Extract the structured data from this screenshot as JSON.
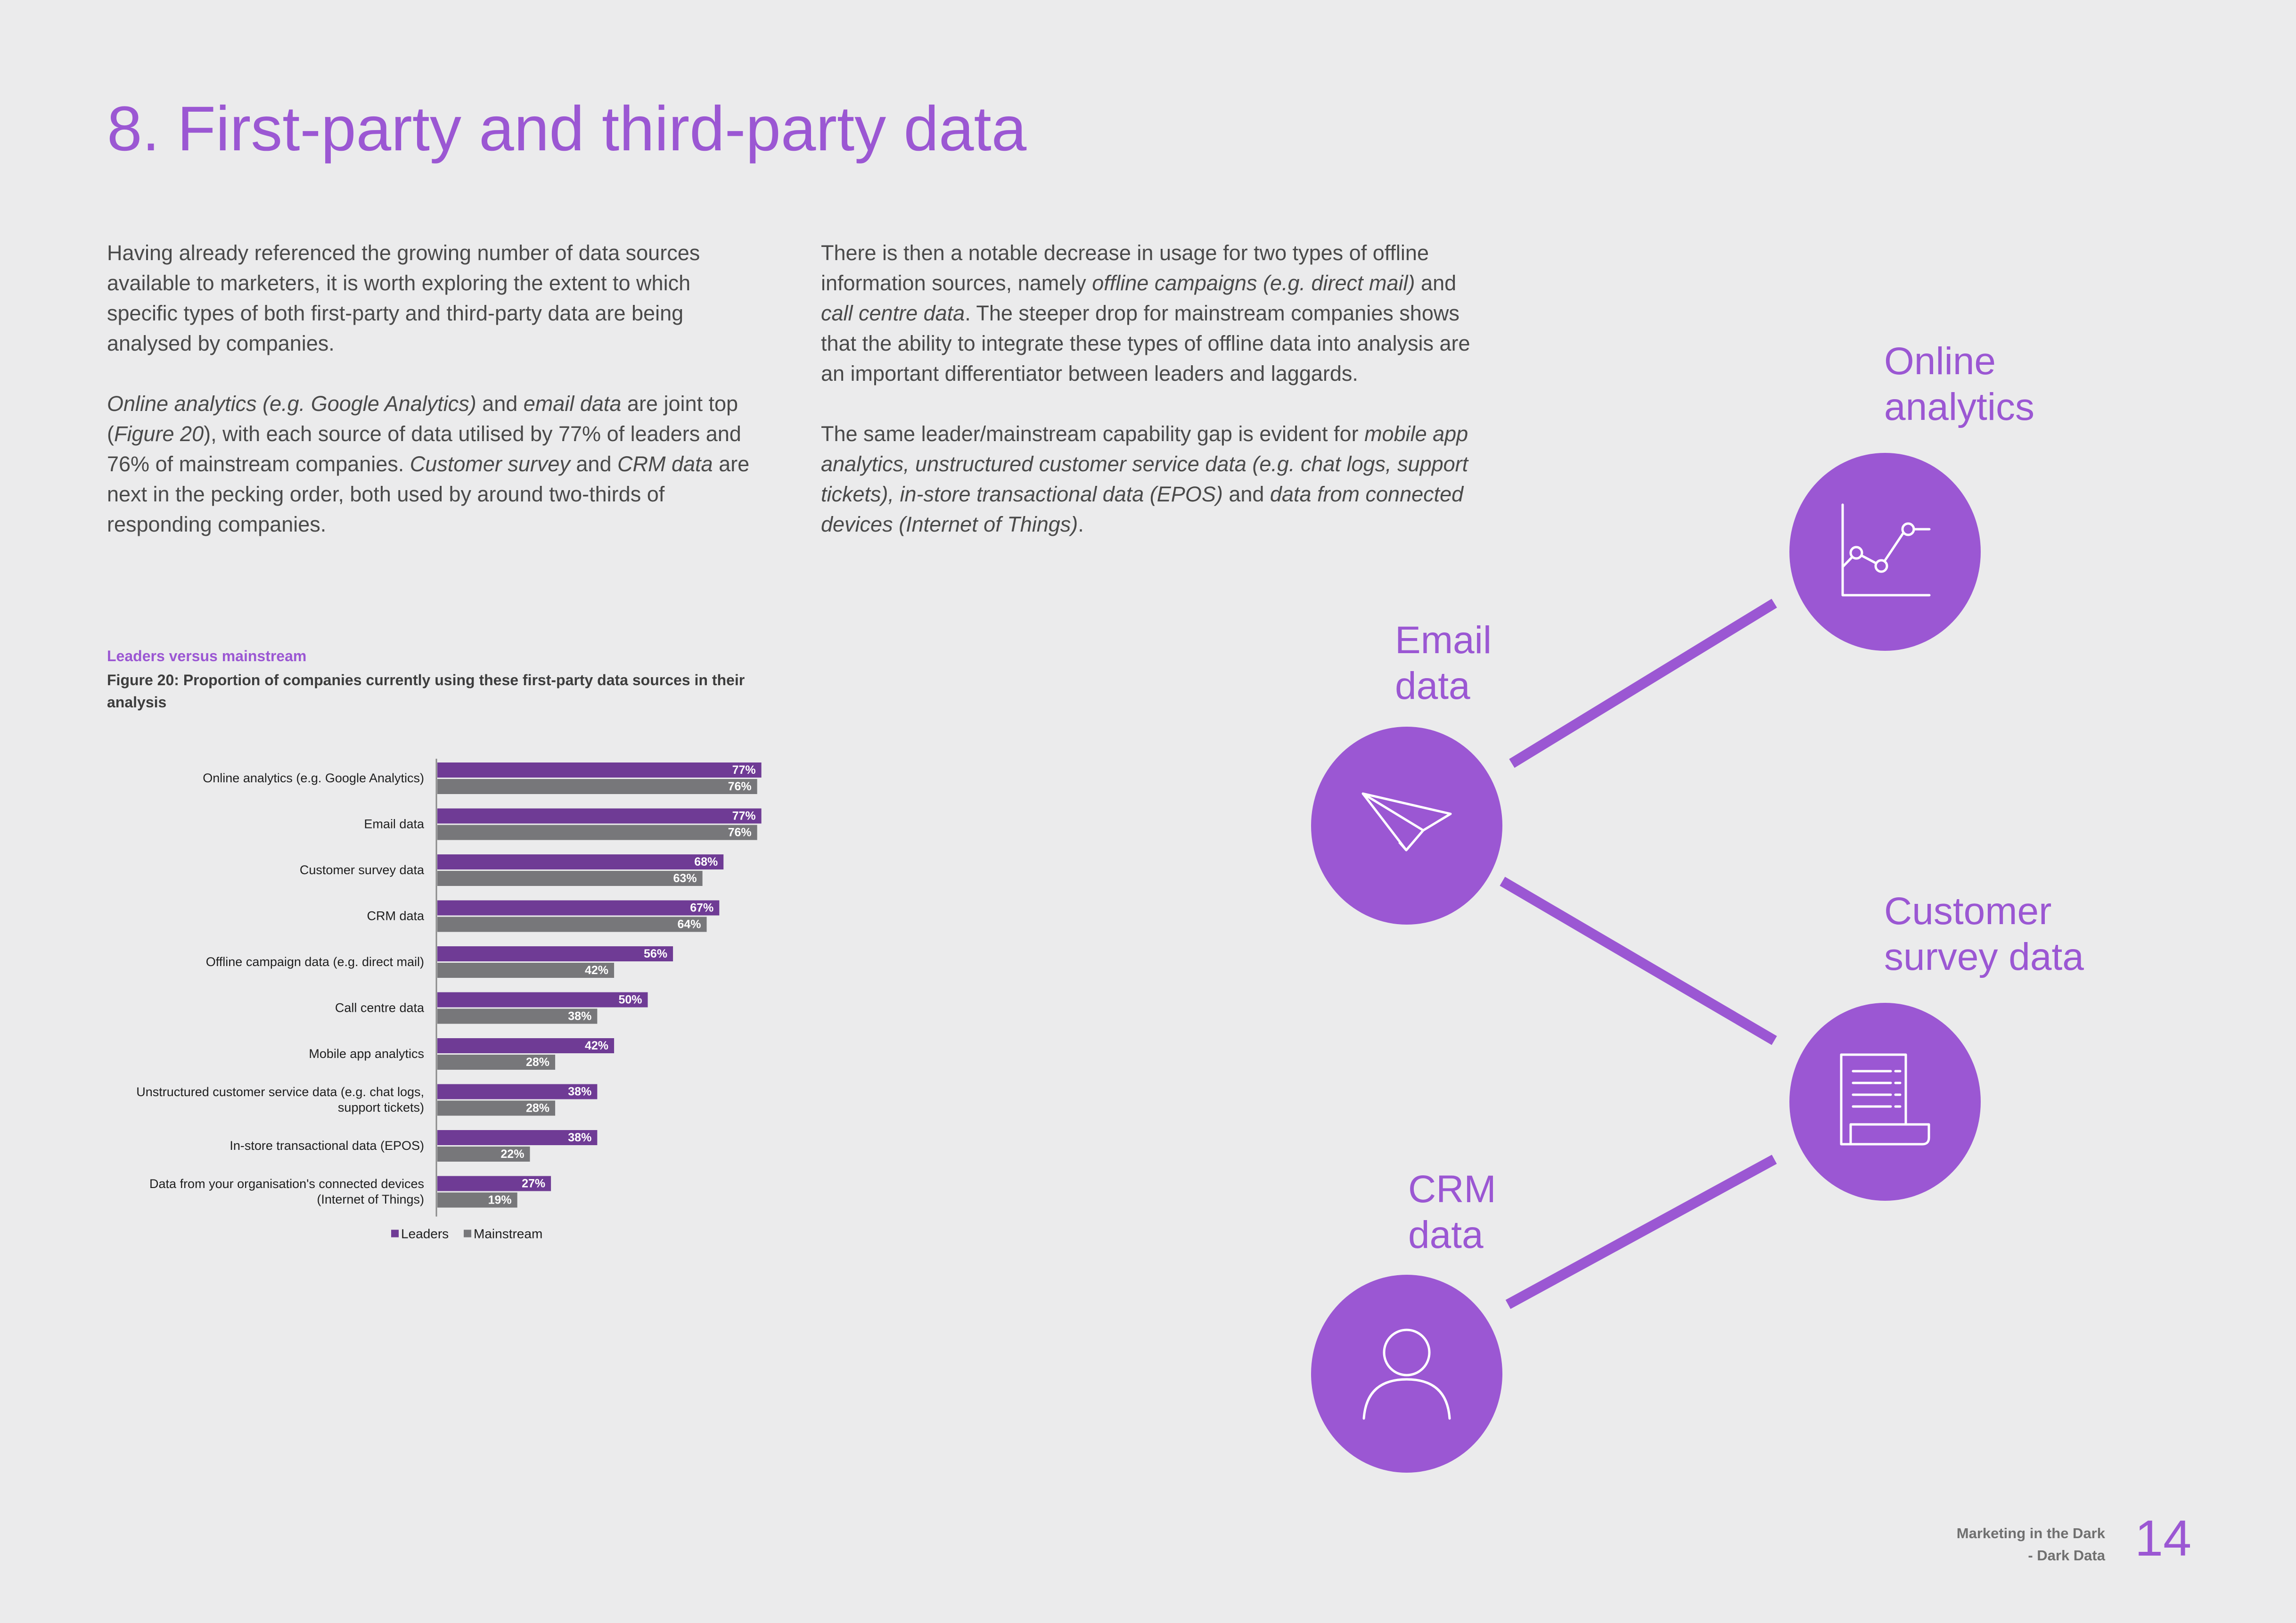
{
  "page": {
    "title": "8. First-party and third-party data"
  },
  "left_column": {
    "p1": "Having already referenced the growing number of data sources available to marketers, it is worth exploring the extent to which specific types of both first-party and third-party data are being analysed by companies.",
    "p2": {
      "s1": "Online analytics (e.g. Google Analytics)",
      "s2": " and ",
      "s3": "email data",
      "s4": " are joint top (",
      "s5": "Figure 20",
      "s6": "), with each source of data utilised by 77% of leaders and 76% of mainstream companies. ",
      "s7": "Customer survey",
      "s8": " and ",
      "s9": "CRM data",
      "s10": " are next in the pecking order, both used by around two-thirds of responding companies."
    }
  },
  "right_column": {
    "p1": {
      "s1": "There is then a notable decrease in usage for two types of offline information sources, namely ",
      "s2": "offline campaigns (e.g. direct mail)",
      "s3": " and ",
      "s4": "call centre data",
      "s5": ". The steeper drop for mainstream companies shows that the ability to integrate these types of offline data into analysis are an important differentiator between leaders and laggards."
    },
    "p2": {
      "s1": "The same leader/mainstream capability gap is evident for ",
      "s2": "mobile app analytics, unstructured customer service data (e.g. chat logs, support tickets), in-store transactional data (EPOS)",
      "s3": " and ",
      "s4": "data from connected devices (Internet of Things)",
      "s5": "."
    }
  },
  "figure": {
    "kicker": "Leaders versus mainstream",
    "title": "Figure 20: Proportion of companies currently using these first-party data sources in their analysis"
  },
  "chart_data": {
    "type": "bar",
    "orientation": "horizontal",
    "title": "Figure 20: Proportion of companies currently using these first-party data sources in their analysis",
    "categories": [
      "Online analytics (e.g. Google Analytics)",
      "Email data",
      "Customer survey data",
      "CRM data",
      "Offline campaign data (e.g. direct mail)",
      "Call centre data",
      "Mobile app analytics",
      "Unstructured customer service data (e.g. chat logs,|support tickets)",
      "In-store transactional data (EPOS)",
      "Data from your organisation's connected devices|(Internet of Things)"
    ],
    "series": [
      {
        "name": "Leaders",
        "color": "#6f3b95",
        "values": [
          77,
          77,
          68,
          67,
          56,
          50,
          42,
          38,
          38,
          27
        ]
      },
      {
        "name": "Mainstream",
        "color": "#77777a",
        "values": [
          76,
          76,
          63,
          64,
          42,
          38,
          28,
          28,
          22,
          19
        ]
      }
    ],
    "value_suffix": "%",
    "xlim": [
      0,
      100
    ],
    "grid": false,
    "legend_position": "bottom"
  },
  "diagram": {
    "accent": "#9b57d3",
    "nodes": {
      "online": {
        "label_line1": "Online",
        "label_line2": "analytics",
        "icon": "line-chart-icon"
      },
      "email": {
        "label_line1": "Email",
        "label_line2": "data",
        "icon": "paper-plane-icon"
      },
      "survey": {
        "label_line1": "Customer",
        "label_line2": "survey data",
        "icon": "document-scroll-icon"
      },
      "crm": {
        "label_line1": "CRM",
        "label_line2": "data",
        "icon": "person-icon"
      }
    }
  },
  "footer": {
    "line1": "Marketing in the Dark",
    "line2": "- Dark Data",
    "page_number": "14"
  }
}
